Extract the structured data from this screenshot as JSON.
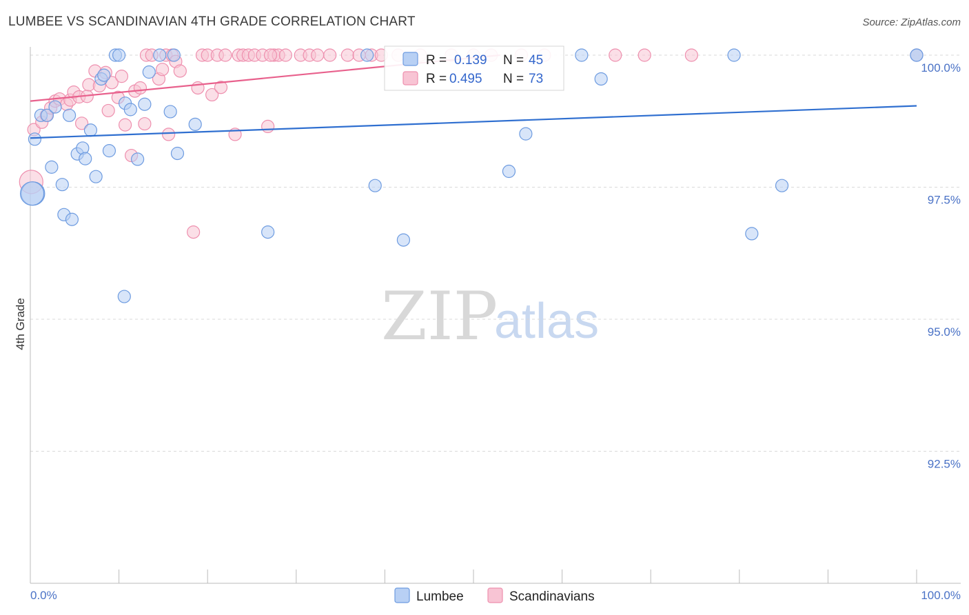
{
  "title": "LUMBEE VS SCANDINAVIAN 4TH GRADE CORRELATION CHART",
  "source": "Source: ZipAtlas.com",
  "watermark": {
    "zip": "ZIP",
    "atlas": "atlas"
  },
  "colors": {
    "lumbee_fill": "#b8d0f4",
    "lumbee_stroke": "#6d9be0",
    "lumbee_line": "#2f6fd0",
    "scand_fill": "#f8c4d4",
    "scand_stroke": "#ee8fae",
    "scand_line": "#e8608c",
    "tick_text": "#4a72c6",
    "grid": "#d9d9d9"
  },
  "stats": {
    "r_label": "R =",
    "n_label": "N =",
    "lumbee": {
      "r": "0.139",
      "n": "45"
    },
    "scand": {
      "r": "0.495",
      "n": "73"
    }
  },
  "legend": {
    "lumbee": "Lumbee",
    "scand": "Scandinavians"
  },
  "chart_data": {
    "type": "scatter",
    "xlabel": "",
    "ylabel": "4th Grade",
    "xlim": [
      0,
      100
    ],
    "ylim": [
      90.5,
      100.15
    ],
    "x_tick_labels": {
      "left": "0.0%",
      "right": "100.0%"
    },
    "y_ticks": [
      {
        "value": 100.0,
        "label": "100.0%"
      },
      {
        "value": 97.5,
        "label": "97.5%"
      },
      {
        "value": 95.0,
        "label": "95.0%"
      },
      {
        "value": 92.5,
        "label": "92.5%"
      }
    ],
    "series": [
      {
        "name": "Lumbee",
        "r": 0.139,
        "n": 45,
        "trend": [
          [
            0,
            98.43
          ],
          [
            100,
            99.04
          ]
        ],
        "points": [
          [
            0.3,
            97.38
          ],
          [
            0.5,
            98.41
          ],
          [
            1.2,
            98.86
          ],
          [
            1.9,
            98.86
          ],
          [
            2.4,
            97.88
          ],
          [
            2.8,
            99.02
          ],
          [
            3.6,
            97.55
          ],
          [
            3.8,
            96.98
          ],
          [
            4.4,
            98.86
          ],
          [
            4.7,
            96.89
          ],
          [
            5.3,
            98.13
          ],
          [
            5.9,
            98.24
          ],
          [
            6.2,
            98.04
          ],
          [
            6.8,
            98.58
          ],
          [
            7.4,
            97.7
          ],
          [
            8.0,
            99.55
          ],
          [
            8.3,
            99.62
          ],
          [
            8.9,
            98.19
          ],
          [
            9.6,
            100.0
          ],
          [
            10.0,
            100.0
          ],
          [
            10.6,
            95.43
          ],
          [
            10.7,
            99.09
          ],
          [
            11.3,
            98.97
          ],
          [
            12.1,
            98.03
          ],
          [
            12.9,
            99.07
          ],
          [
            13.4,
            99.68
          ],
          [
            14.6,
            100.0
          ],
          [
            15.8,
            98.93
          ],
          [
            16.2,
            100.0
          ],
          [
            16.6,
            98.14
          ],
          [
            18.6,
            98.69
          ],
          [
            26.8,
            96.65
          ],
          [
            38.0,
            100.0
          ],
          [
            38.9,
            97.53
          ],
          [
            42.1,
            96.5
          ],
          [
            54.0,
            97.8
          ],
          [
            55.9,
            98.51
          ],
          [
            62.2,
            100.0
          ],
          [
            64.4,
            99.55
          ],
          [
            79.4,
            100.0
          ],
          [
            81.4,
            96.62
          ],
          [
            84.8,
            97.53
          ],
          [
            100.0,
            100.0
          ],
          [
            100.0,
            100.0
          ],
          [
            0.2,
            97.38
          ]
        ]
      },
      {
        "name": "Scandinavians",
        "r": 0.495,
        "n": 73,
        "trend": [
          [
            0,
            99.13
          ],
          [
            53,
            100.0
          ]
        ],
        "points": [
          [
            0.1,
            97.6
          ],
          [
            0.4,
            98.59
          ],
          [
            1.3,
            98.73
          ],
          [
            1.8,
            98.86
          ],
          [
            2.3,
            99.0
          ],
          [
            2.8,
            99.13
          ],
          [
            3.3,
            99.17
          ],
          [
            4.1,
            99.07
          ],
          [
            4.5,
            99.15
          ],
          [
            4.9,
            99.3
          ],
          [
            5.5,
            99.21
          ],
          [
            5.8,
            98.71
          ],
          [
            6.4,
            99.22
          ],
          [
            6.6,
            99.44
          ],
          [
            7.3,
            99.7
          ],
          [
            7.8,
            99.42
          ],
          [
            8.5,
            99.67
          ],
          [
            8.8,
            98.95
          ],
          [
            9.2,
            99.48
          ],
          [
            9.9,
            99.2
          ],
          [
            10.3,
            99.6
          ],
          [
            10.7,
            98.68
          ],
          [
            11.4,
            98.1
          ],
          [
            11.8,
            99.32
          ],
          [
            12.4,
            99.38
          ],
          [
            12.9,
            98.7
          ],
          [
            13.1,
            100.0
          ],
          [
            13.7,
            100.0
          ],
          [
            14.5,
            99.55
          ],
          [
            14.9,
            99.73
          ],
          [
            15.3,
            100.0
          ],
          [
            15.6,
            98.5
          ],
          [
            16.0,
            100.0
          ],
          [
            16.4,
            99.88
          ],
          [
            16.9,
            99.7
          ],
          [
            18.4,
            96.65
          ],
          [
            18.9,
            99.38
          ],
          [
            19.4,
            100.0
          ],
          [
            20.0,
            100.0
          ],
          [
            20.5,
            99.25
          ],
          [
            21.1,
            100.0
          ],
          [
            21.5,
            99.39
          ],
          [
            22.0,
            100.0
          ],
          [
            23.1,
            98.5
          ],
          [
            23.5,
            100.0
          ],
          [
            24.0,
            100.0
          ],
          [
            24.6,
            100.0
          ],
          [
            25.3,
            100.0
          ],
          [
            26.2,
            100.0
          ],
          [
            26.8,
            98.65
          ],
          [
            27.5,
            100.0
          ],
          [
            28.0,
            100.0
          ],
          [
            28.8,
            100.0
          ],
          [
            30.5,
            100.0
          ],
          [
            31.5,
            100.0
          ],
          [
            32.4,
            100.0
          ],
          [
            33.8,
            100.0
          ],
          [
            35.8,
            100.0
          ],
          [
            37.1,
            100.0
          ],
          [
            38.5,
            100.0
          ],
          [
            39.6,
            100.0
          ],
          [
            41.5,
            100.0
          ],
          [
            44.0,
            100.0
          ],
          [
            47.5,
            100.0
          ],
          [
            50.0,
            100.0
          ],
          [
            52.0,
            100.0
          ],
          [
            55.4,
            100.0
          ],
          [
            58.0,
            100.0
          ],
          [
            66.0,
            100.0
          ],
          [
            69.3,
            100.0
          ],
          [
            74.6,
            100.0
          ],
          [
            100.0,
            100.0
          ],
          [
            27.1,
            100.0
          ]
        ]
      }
    ]
  }
}
